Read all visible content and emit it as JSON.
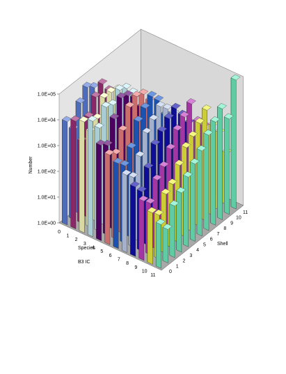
{
  "chart_data": {
    "type": "bar3d",
    "y_title": "Number",
    "x_title": "Species",
    "x_subtitle": "B3 IC",
    "z_title": "Shell",
    "log_scale": true,
    "ylim": [
      1,
      100000
    ],
    "yticks": [
      {
        "value": 1,
        "label": "1.0E+00"
      },
      {
        "value": 10,
        "label": "1.0E+01"
      },
      {
        "value": 100,
        "label": "1.0E+02"
      },
      {
        "value": 1000,
        "label": "1.0E+03"
      },
      {
        "value": 10000,
        "label": "1.0E+04"
      },
      {
        "value": 100000,
        "label": "1.0E+05"
      }
    ],
    "categories": [
      "0",
      "1",
      "2",
      "3",
      "4",
      "5",
      "6",
      "7",
      "8",
      "9",
      "10",
      "11"
    ],
    "z_categories": [
      "0",
      "1",
      "2",
      "3",
      "4",
      "5",
      "6",
      "7",
      "8",
      "9",
      "10",
      "11"
    ],
    "colors": [
      "#5b7fdc",
      "#a0307a",
      "#ffffc0",
      "#c8f0f8",
      "#5a0070",
      "#f08080",
      "#2060d0",
      "#c0d0f0",
      "#1010b0",
      "#c040c0",
      "#f0f040",
      "#70f0c0"
    ],
    "values": [
      [
        10000,
        3000,
        20000,
        50000,
        30000,
        null,
        null,
        null,
        null,
        null,
        null,
        null
      ],
      [
        15000,
        1500,
        8000,
        30000,
        60000,
        20000,
        null,
        null,
        null,
        null,
        null,
        null
      ],
      [
        20000,
        5000,
        10000,
        40000,
        40000,
        30000,
        5000,
        null,
        null,
        null,
        null,
        null
      ],
      [
        30000,
        10000,
        40000,
        30000,
        70000,
        50000,
        20000,
        null,
        null,
        null,
        null,
        null
      ],
      [
        5000,
        3000,
        20000,
        80000,
        60000,
        30000,
        8000,
        1000,
        null,
        null,
        null,
        null
      ],
      [
        3000,
        2000,
        10000,
        50000,
        80000,
        60000,
        20000,
        3000,
        null,
        null,
        null,
        null
      ],
      [
        2000,
        1000,
        3000,
        20000,
        40000,
        70000,
        30000,
        5000,
        500,
        null,
        null,
        null
      ],
      [
        1000,
        500,
        2000,
        10000,
        20000,
        40000,
        20000,
        8000,
        1000,
        100,
        null,
        null
      ],
      [
        500,
        200,
        1000,
        5000,
        10000,
        20000,
        30000,
        10000,
        3000,
        500,
        null,
        null
      ],
      [
        200,
        100,
        500,
        1000,
        3000,
        10000,
        20000,
        40000,
        5000,
        2000,
        300,
        null
      ],
      [
        100,
        50,
        200,
        300,
        1000,
        3000,
        5000,
        10000,
        20000,
        3000,
        1000,
        100
      ],
      [
        50,
        20,
        100,
        200,
        500,
        1000,
        2000,
        5000,
        10000,
        20000,
        5000,
        100000
      ]
    ]
  }
}
